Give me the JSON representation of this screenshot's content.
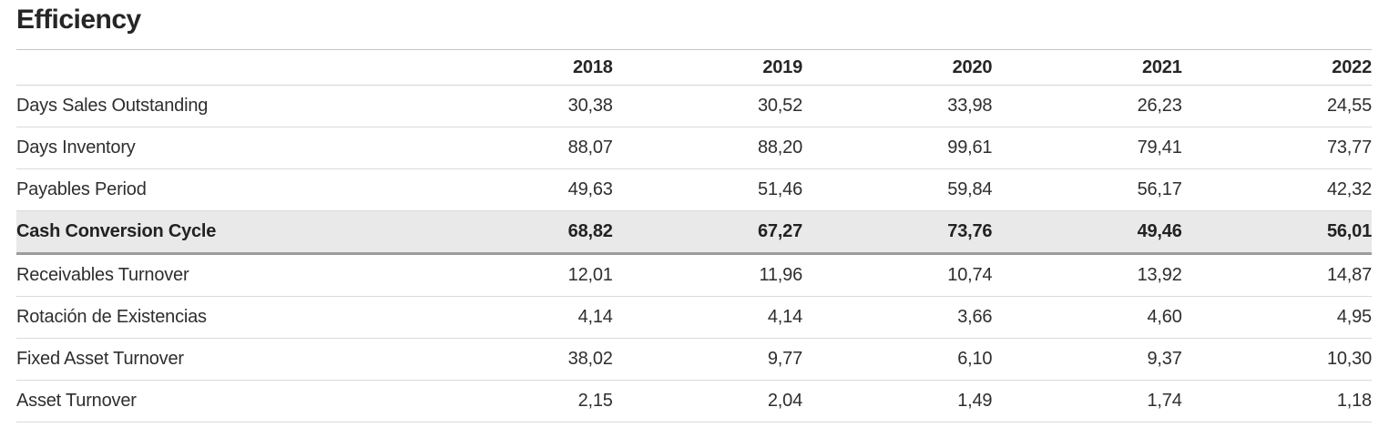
{
  "section": {
    "title": "Efficiency"
  },
  "table": {
    "columns": [
      "2018",
      "2019",
      "2020",
      "2021",
      "2022"
    ],
    "rows": [
      {
        "label": "Days Sales Outstanding",
        "values": [
          "30,38",
          "30,52",
          "33,98",
          "26,23",
          "24,55"
        ],
        "emphasis": false
      },
      {
        "label": "Days Inventory",
        "values": [
          "88,07",
          "88,20",
          "99,61",
          "79,41",
          "73,77"
        ],
        "emphasis": false
      },
      {
        "label": "Payables Period",
        "values": [
          "49,63",
          "51,46",
          "59,84",
          "56,17",
          "42,32"
        ],
        "emphasis": false
      },
      {
        "label": "Cash Conversion Cycle",
        "values": [
          "68,82",
          "67,27",
          "73,76",
          "49,46",
          "56,01"
        ],
        "emphasis": true
      },
      {
        "label": "Receivables Turnover",
        "values": [
          "12,01",
          "11,96",
          "10,74",
          "13,92",
          "14,87"
        ],
        "emphasis": false
      },
      {
        "label": "Rotación de Existencias",
        "values": [
          "4,14",
          "4,14",
          "3,66",
          "4,60",
          "4,95"
        ],
        "emphasis": false
      },
      {
        "label": "Fixed Asset Turnover",
        "values": [
          "38,02",
          "9,77",
          "6,10",
          "9,37",
          "10,30"
        ],
        "emphasis": false
      },
      {
        "label": "Asset Turnover",
        "values": [
          "2,15",
          "2,04",
          "1,49",
          "1,74",
          "1,18"
        ],
        "emphasis": false
      }
    ]
  },
  "colors": {
    "text": "#2e2e2e",
    "emphasis_row_bg": "#e9e9e9",
    "emphasis_rule": "#9c9c9c",
    "row_rule": "#dadada",
    "header_rule_top": "#c6c6c6"
  },
  "chart_data": {
    "type": "table",
    "title": "Efficiency",
    "decimal_separator": ",",
    "categories": [
      "2018",
      "2019",
      "2020",
      "2021",
      "2022"
    ],
    "series": [
      {
        "name": "Days Sales Outstanding",
        "values": [
          30.38,
          30.52,
          33.98,
          26.23,
          24.55
        ]
      },
      {
        "name": "Days Inventory",
        "values": [
          88.07,
          88.2,
          99.61,
          79.41,
          73.77
        ]
      },
      {
        "name": "Payables Period",
        "values": [
          49.63,
          51.46,
          59.84,
          56.17,
          42.32
        ]
      },
      {
        "name": "Cash Conversion Cycle",
        "values": [
          68.82,
          67.27,
          73.76,
          49.46,
          56.01
        ]
      },
      {
        "name": "Receivables Turnover",
        "values": [
          12.01,
          11.96,
          10.74,
          13.92,
          14.87
        ]
      },
      {
        "name": "Rotación de Existencias",
        "values": [
          4.14,
          4.14,
          3.66,
          4.6,
          4.95
        ]
      },
      {
        "name": "Fixed Asset Turnover",
        "values": [
          38.02,
          9.77,
          6.1,
          9.37,
          10.3
        ]
      },
      {
        "name": "Asset Turnover",
        "values": [
          2.15,
          2.04,
          1.49,
          1.74,
          1.18
        ]
      }
    ]
  }
}
